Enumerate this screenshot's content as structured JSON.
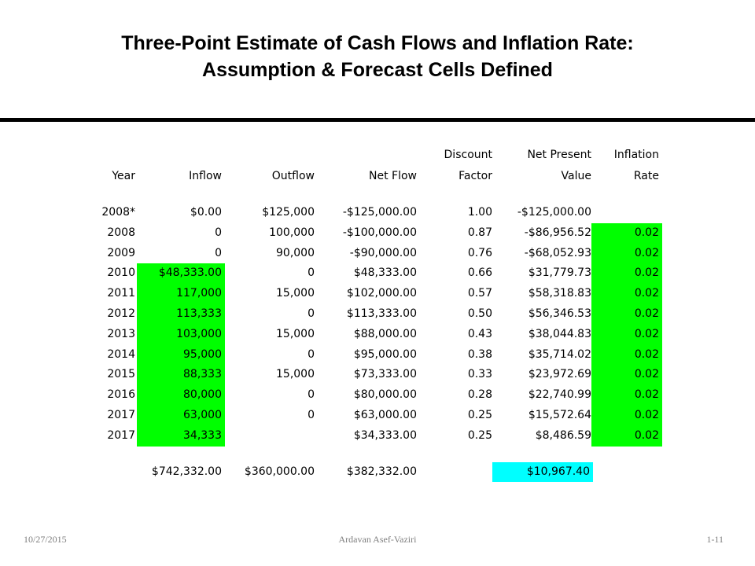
{
  "title_line1": "Three-Point Estimate of Cash Flows and Inflation Rate:",
  "title_line2": "Assumption & Forecast Cells Defined",
  "headers_top": {
    "discount": "Discount",
    "npv": "Net Present",
    "inflation": "Inflation"
  },
  "headers": {
    "year": "Year",
    "inflow": "Inflow",
    "outflow": "Outflow",
    "netflow": "Net Flow",
    "factor": "Factor",
    "value": "Value",
    "rate": "Rate"
  },
  "rows": [
    [
      "2008*",
      "$0.00",
      "$125,000",
      "-$125,000.00",
      "1.00",
      "-$125,000.00",
      ""
    ],
    [
      "2008",
      "0",
      "100,000",
      "-$100,000.00",
      "0.87",
      "-$86,956.52",
      "0.02"
    ],
    [
      "2009",
      "0",
      "90,000",
      "-$90,000.00",
      "0.76",
      "-$68,052.93",
      "0.02"
    ],
    [
      "2010",
      "$48,333.00",
      "0",
      "$48,333.00",
      "0.66",
      "$31,779.73",
      "0.02"
    ],
    [
      "2011",
      "117,000",
      "15,000",
      "$102,000.00",
      "0.57",
      "$58,318.83",
      "0.02"
    ],
    [
      "2012",
      "113,333",
      "0",
      "$113,333.00",
      "0.50",
      "$56,346.53",
      "0.02"
    ],
    [
      "2013",
      "103,000",
      "15,000",
      "$88,000.00",
      "0.43",
      "$38,044.83",
      "0.02"
    ],
    [
      "2014",
      "95,000",
      "0",
      "$95,000.00",
      "0.38",
      "$35,714.02",
      "0.02"
    ],
    [
      "2015",
      "88,333",
      "15,000",
      "$73,333.00",
      "0.33",
      "$23,972.69",
      "0.02"
    ],
    [
      "2016",
      "80,000",
      "0",
      "$80,000.00",
      "0.28",
      "$22,740.99",
      "0.02"
    ],
    [
      "2017",
      "63,000",
      "0",
      "$63,000.00",
      "0.25",
      "$15,572.64",
      "0.02"
    ],
    [
      "2017",
      "34,333",
      "",
      "$34,333.00",
      "0.25",
      "$8,486.59",
      "0.02"
    ]
  ],
  "totals": {
    "inflow": "$742,332.00",
    "outflow": "$360,000.00",
    "netflow": "$382,332.00",
    "npv": "$10,967.40"
  },
  "footer": {
    "date": "10/27/2015",
    "author": "Ardavan Asef-Vaziri",
    "page": "1-11"
  },
  "colors": {
    "assumption": "#00ff00",
    "forecast": "#00ffff"
  }
}
